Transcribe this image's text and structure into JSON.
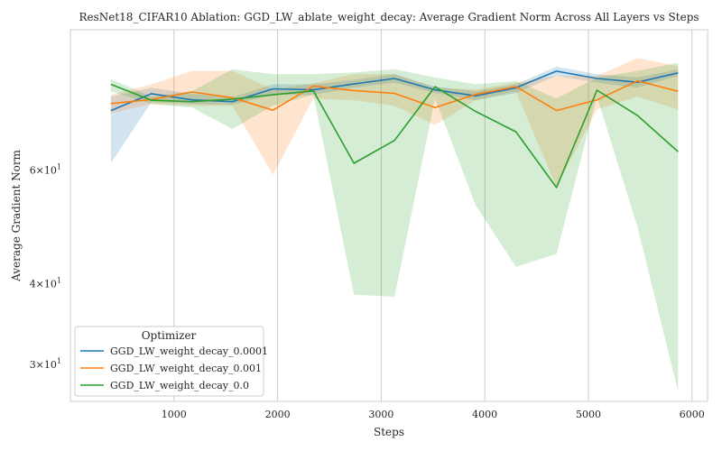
{
  "chart_data": {
    "type": "line",
    "title": "ResNet18_CIFAR10 Ablation: GGD_LW_ablate_weight_decay: Average Gradient Norm Across All Layers vs Steps",
    "xlabel": "Steps",
    "ylabel": "Average Gradient Norm",
    "y_scale": "log",
    "xlim": [
      0,
      6150
    ],
    "ylim": [
      26.3,
      99
    ],
    "x_ticks": [
      1000,
      2000,
      3000,
      4000,
      5000,
      6000
    ],
    "x_tick_labels": [
      "1000",
      "2000",
      "3000",
      "4000",
      "5000",
      "6000"
    ],
    "y_ticks": [
      30,
      40,
      60
    ],
    "y_tick_labels": [
      {
        "base": "3×10",
        "exp": "1"
      },
      {
        "base": "4×10",
        "exp": "1"
      },
      {
        "base": "6×10",
        "exp": "1"
      }
    ],
    "grid": "vertical",
    "legend": {
      "title": "Optimizer",
      "position": "lower-left"
    },
    "series": [
      {
        "name": "GGD_LW_weight_decay_0.0001",
        "color": "#1f77b4",
        "x": [
          391,
          782,
          1173,
          1564,
          1955,
          2346,
          2737,
          3128,
          3519,
          3910,
          4301,
          4692,
          5083,
          5474,
          5865
        ],
        "y": [
          74.2,
          78.8,
          77.1,
          76.6,
          80.2,
          79.9,
          81.6,
          83.2,
          79.9,
          78.2,
          80.5,
          85.4,
          83.2,
          82.1,
          84.9
        ],
        "lower": [
          61.5,
          76.5,
          76.0,
          75.8,
          78.5,
          78.5,
          80.5,
          82.0,
          79.0,
          77.0,
          79.0,
          84.0,
          82.0,
          80.5,
          84.0
        ],
        "upper": [
          78.0,
          80.5,
          78.8,
          77.8,
          81.5,
          81.5,
          82.8,
          84.5,
          80.8,
          79.5,
          81.5,
          86.8,
          84.5,
          83.5,
          86.0
        ]
      },
      {
        "name": "GGD_LW_weight_decay_0.001",
        "color": "#ff7f0e",
        "x": [
          391,
          782,
          1173,
          1564,
          1955,
          2346,
          2737,
          3128,
          3519,
          3910,
          4301,
          4692,
          5083,
          5474,
          5865
        ],
        "y": [
          76.1,
          77.2,
          79.3,
          77.7,
          74.3,
          81.0,
          79.7,
          78.9,
          75.0,
          78.6,
          80.8,
          74.2,
          77.1,
          82.5,
          79.5
        ],
        "lower": [
          73.5,
          76.0,
          75.5,
          75.5,
          59.0,
          77.5,
          77.0,
          75.5,
          70.5,
          77.0,
          79.5,
          56.5,
          74.5,
          78.0,
          74.5
        ],
        "upper": [
          78.5,
          81.5,
          85.5,
          85.5,
          80.0,
          81.8,
          84.5,
          84.5,
          80.5,
          80.0,
          82.0,
          84.0,
          84.0,
          89.5,
          87.0
        ]
      },
      {
        "name": "GGD_LW_weight_decay_0.0",
        "color": "#2ca02c",
        "x": [
          391,
          782,
          1173,
          1564,
          1955,
          2346,
          2737,
          3128,
          3519,
          3910,
          4301,
          4692,
          5083,
          5474,
          5865
        ],
        "y": [
          81.5,
          77.0,
          76.6,
          77.3,
          78.5,
          79.6,
          61.5,
          66.7,
          80.8,
          74.0,
          68.8,
          56.4,
          79.8,
          72.9,
          64.1
        ],
        "lower": [
          79.5,
          76.0,
          75.0,
          69.5,
          75.5,
          78.5,
          38.5,
          38.2,
          77.5,
          53.0,
          42.5,
          44.5,
          78.0,
          49.0,
          27.3
        ],
        "upper": [
          83.0,
          78.0,
          79.5,
          86.0,
          84.5,
          84.5,
          85.0,
          86.0,
          83.5,
          81.5,
          82.5,
          77.5,
          83.5,
          85.5,
          88.0
        ]
      }
    ]
  }
}
